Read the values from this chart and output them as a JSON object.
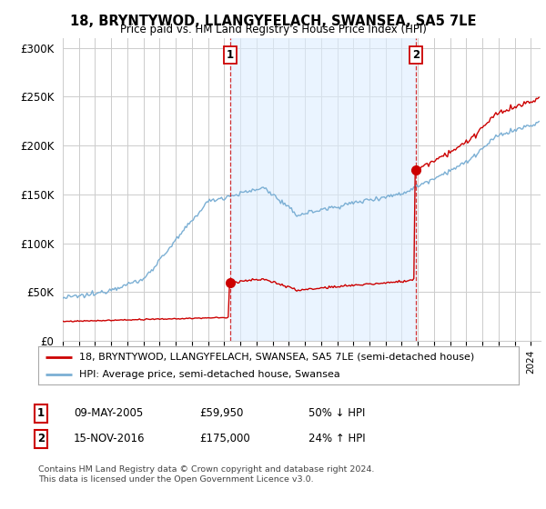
{
  "title": "18, BRYNTYWOD, LLANGYFELACH, SWANSEA, SA5 7LE",
  "subtitle": "Price paid vs. HM Land Registry's House Price Index (HPI)",
  "ylim": [
    0,
    310000
  ],
  "yticks": [
    0,
    50000,
    100000,
    150000,
    200000,
    250000,
    300000
  ],
  "ytick_labels": [
    "£0",
    "£50K",
    "£100K",
    "£150K",
    "£200K",
    "£250K",
    "£300K"
  ],
  "sale1_year": 2005.37,
  "sale1_price": 59950,
  "sale2_year": 2016.87,
  "sale2_price": 175000,
  "legend_entry1": "18, BRYNTYWOD, LLANGYFELACH, SWANSEA, SA5 7LE (semi-detached house)",
  "legend_entry2": "HPI: Average price, semi-detached house, Swansea",
  "table_row1": [
    "1",
    "09-MAY-2005",
    "£59,950",
    "50% ↓ HPI"
  ],
  "table_row2": [
    "2",
    "15-NOV-2016",
    "£175,000",
    "24% ↑ HPI"
  ],
  "footer": "Contains HM Land Registry data © Crown copyright and database right 2024.\nThis data is licensed under the Open Government Licence v3.0.",
  "line_color_property": "#cc0000",
  "line_color_hpi": "#7bafd4",
  "fill_color": "#ddeeff",
  "background_color": "#ffffff",
  "grid_color": "#cccccc"
}
